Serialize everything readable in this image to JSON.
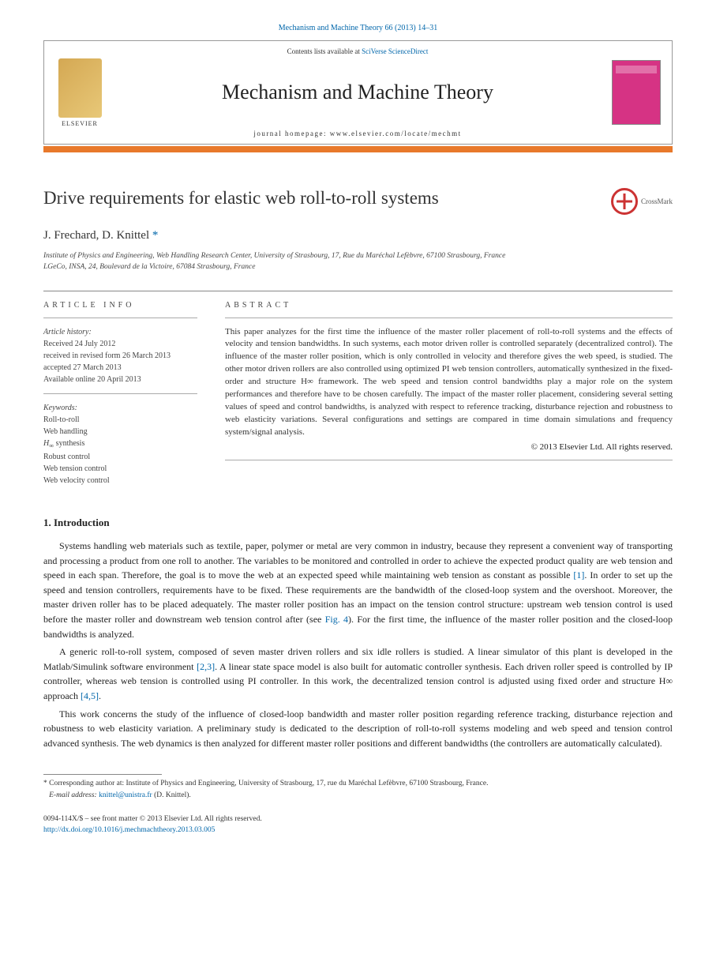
{
  "top_reference": "Mechanism and Machine Theory 66 (2013) 14–31",
  "header": {
    "contents_prefix": "Contents lists available at ",
    "contents_linktext": "SciVerse ScienceDirect",
    "journal": "Mechanism and Machine Theory",
    "homepage_prefix": "journal homepage: ",
    "homepage_url": "www.elsevier.com/locate/mechmt",
    "publisher": "ELSEVIER"
  },
  "article": {
    "title": "Drive requirements for elastic web roll-to-roll systems",
    "crossmark": "CrossMark",
    "authors": "J. Frechard, D. Knittel",
    "corr_symbol": "*",
    "affiliations": [
      "Institute of Physics and Engineering, Web Handling Research Center, University of Strasbourg, 17, Rue du Maréchal Lefèbvre, 67100 Strasbourg, France",
      "LGeCo, INSA, 24, Boulevard de la Victoire, 67084 Strasbourg, France"
    ]
  },
  "info": {
    "header": "ARTICLE INFO",
    "history_label": "Article history:",
    "history": [
      "Received 24 July 2012",
      "received in revised form 26 March 2013",
      "accepted 27 March 2013",
      "Available online 20 April 2013"
    ],
    "kw_label": "Keywords:",
    "keywords": [
      "Roll-to-roll",
      "Web handling",
      "H∞ synthesis",
      "Robust control",
      "Web tension control",
      "Web velocity control"
    ]
  },
  "abstract": {
    "header": "ABSTRACT",
    "text": "This paper analyzes for the first time the influence of the master roller placement of roll-to-roll systems and the effects of velocity and tension bandwidths. In such systems, each motor driven roller is controlled separately (decentralized control). The influence of the master roller position, which is only controlled in velocity and therefore gives the web speed, is studied. The other motor driven rollers are also controlled using optimized PI web tension controllers, automatically synthesized in the fixed-order and structure H∞ framework. The web speed and tension control bandwidths play a major role on the system performances and therefore have to be chosen carefully. The impact of the master roller placement, considering several setting values of speed and control bandwidths, is analyzed with respect to reference tracking, disturbance rejection and robustness to web elasticity variations. Several configurations and settings are compared in time domain simulations and frequency system/signal analysis.",
    "copyright": "© 2013 Elsevier Ltd. All rights reserved."
  },
  "section1": {
    "heading": "1. Introduction",
    "p1a": "Systems handling web materials such as textile, paper, polymer or metal are very common in industry, because they represent a convenient way of transporting and processing a product from one roll to another. The variables to be monitored and controlled in order to achieve the expected product quality are web tension and speed in each span. Therefore, the goal is to move the web at an expected speed while maintaining web tension as constant as possible ",
    "p1ref1": "[1]",
    "p1b": ". In order to set up the speed and tension controllers, requirements have to be fixed. These requirements are the bandwidth of the closed-loop system and the overshoot. Moreover, the master driven roller has to be placed adequately. The master roller position has an impact on the tension control structure: upstream web tension control is used before the master roller and downstream web tension control after (see ",
    "p1fig": "Fig. 4",
    "p1c": "). For the first time, the influence of the master roller position and the closed-loop bandwidths is analyzed.",
    "p2a": "A generic roll-to-roll system, composed of seven master driven rollers and six idle rollers is studied. A linear simulator of this plant is developed in the Matlab/Simulink software environment ",
    "p2ref1": "[2,3]",
    "p2b": ". A linear state space model is also built for automatic controller synthesis. Each driven roller speed is controlled by IP controller, whereas web tension is controlled using PI controller. In this work, the decentralized tension control is adjusted using fixed order and structure H∞ approach ",
    "p2ref2": "[4,5]",
    "p2c": ".",
    "p3": "This work concerns the study of the influence of closed-loop bandwidth and master roller position regarding reference tracking, disturbance rejection and robustness to web elasticity variation. A preliminary study is dedicated to the description of roll-to-roll systems modeling and web speed and tension control advanced synthesis. The web dynamics is then analyzed for different master roller positions and different bandwidths (the controllers are automatically calculated)."
  },
  "footnote": {
    "corr_text": "Corresponding author at: Institute of Physics and Engineering, University of Strasbourg, 17, rue du Maréchal Lefèbvre, 67100 Strasbourg, France.",
    "email_label": "E-mail address: ",
    "email": "knittel@unistra.fr",
    "email_tail": " (D. Knittel)."
  },
  "bottom": {
    "issn": "0094-114X/$ – see front matter © 2013 Elsevier Ltd. All rights reserved.",
    "doi": "http://dx.doi.org/10.1016/j.mechmachtheory.2013.03.005"
  }
}
